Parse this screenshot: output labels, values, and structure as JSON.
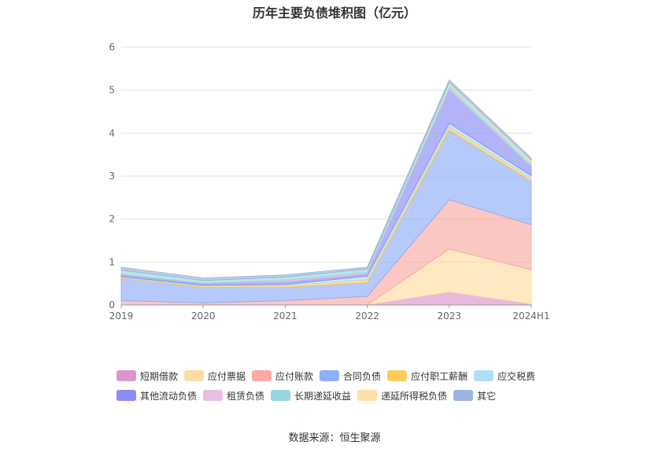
{
  "source_label": "数据来源：恒生聚源",
  "chart_data": {
    "type": "area",
    "stacked": true,
    "title": "历年主要负债堆积图（亿元）",
    "categories": [
      "2019",
      "2020",
      "2021",
      "2022",
      "2023",
      "2024H1"
    ],
    "ylim": [
      0,
      6
    ],
    "yticks": [
      0,
      1,
      2,
      3,
      4,
      5,
      6
    ],
    "grid": true,
    "legend_position": "bottom",
    "series": [
      {
        "name": "短期借款",
        "color": "#d98ac9",
        "values": [
          0,
          0,
          0,
          0,
          0.3,
          0.02
        ]
      },
      {
        "name": "应付票据",
        "color": "#ffd89a",
        "values": [
          0,
          0,
          0,
          0,
          1.0,
          0.8
        ]
      },
      {
        "name": "应付账款",
        "color": "#f9a19a",
        "values": [
          0.1,
          0.05,
          0.1,
          0.2,
          1.15,
          1.05
        ]
      },
      {
        "name": "合同负债",
        "color": "#84a6f9",
        "values": [
          0.52,
          0.36,
          0.31,
          0.32,
          1.62,
          1.01
        ]
      },
      {
        "name": "应付职工薪酬",
        "color": "#fdc84a",
        "values": [
          0.02,
          0.03,
          0.04,
          0.07,
          0.08,
          0.06
        ]
      },
      {
        "name": "应交税费",
        "color": "#a6daf8",
        "values": [
          0.02,
          0.02,
          0.03,
          0.08,
          0.08,
          0.07
        ]
      },
      {
        "name": "其他流动负债",
        "color": "#8181f5",
        "values": [
          0.05,
          0.04,
          0.06,
          0.06,
          0.77,
          0.2
        ]
      },
      {
        "name": "租赁负债",
        "color": "#e5b8de",
        "values": [
          0,
          0,
          0.03,
          0.03,
          0.03,
          0.02
        ]
      },
      {
        "name": "长期递延收益",
        "color": "#8ad3d8",
        "values": [
          0.1,
          0.07,
          0.08,
          0.08,
          0.12,
          0.1
        ]
      },
      {
        "name": "递延所得税负债",
        "color": "#ffdc9d",
        "values": [
          0,
          0,
          0,
          0,
          0.03,
          0.04
        ]
      },
      {
        "name": "其它",
        "color": "#8eaedc",
        "values": [
          0.07,
          0.06,
          0.05,
          0.04,
          0.06,
          0.05
        ]
      }
    ]
  }
}
